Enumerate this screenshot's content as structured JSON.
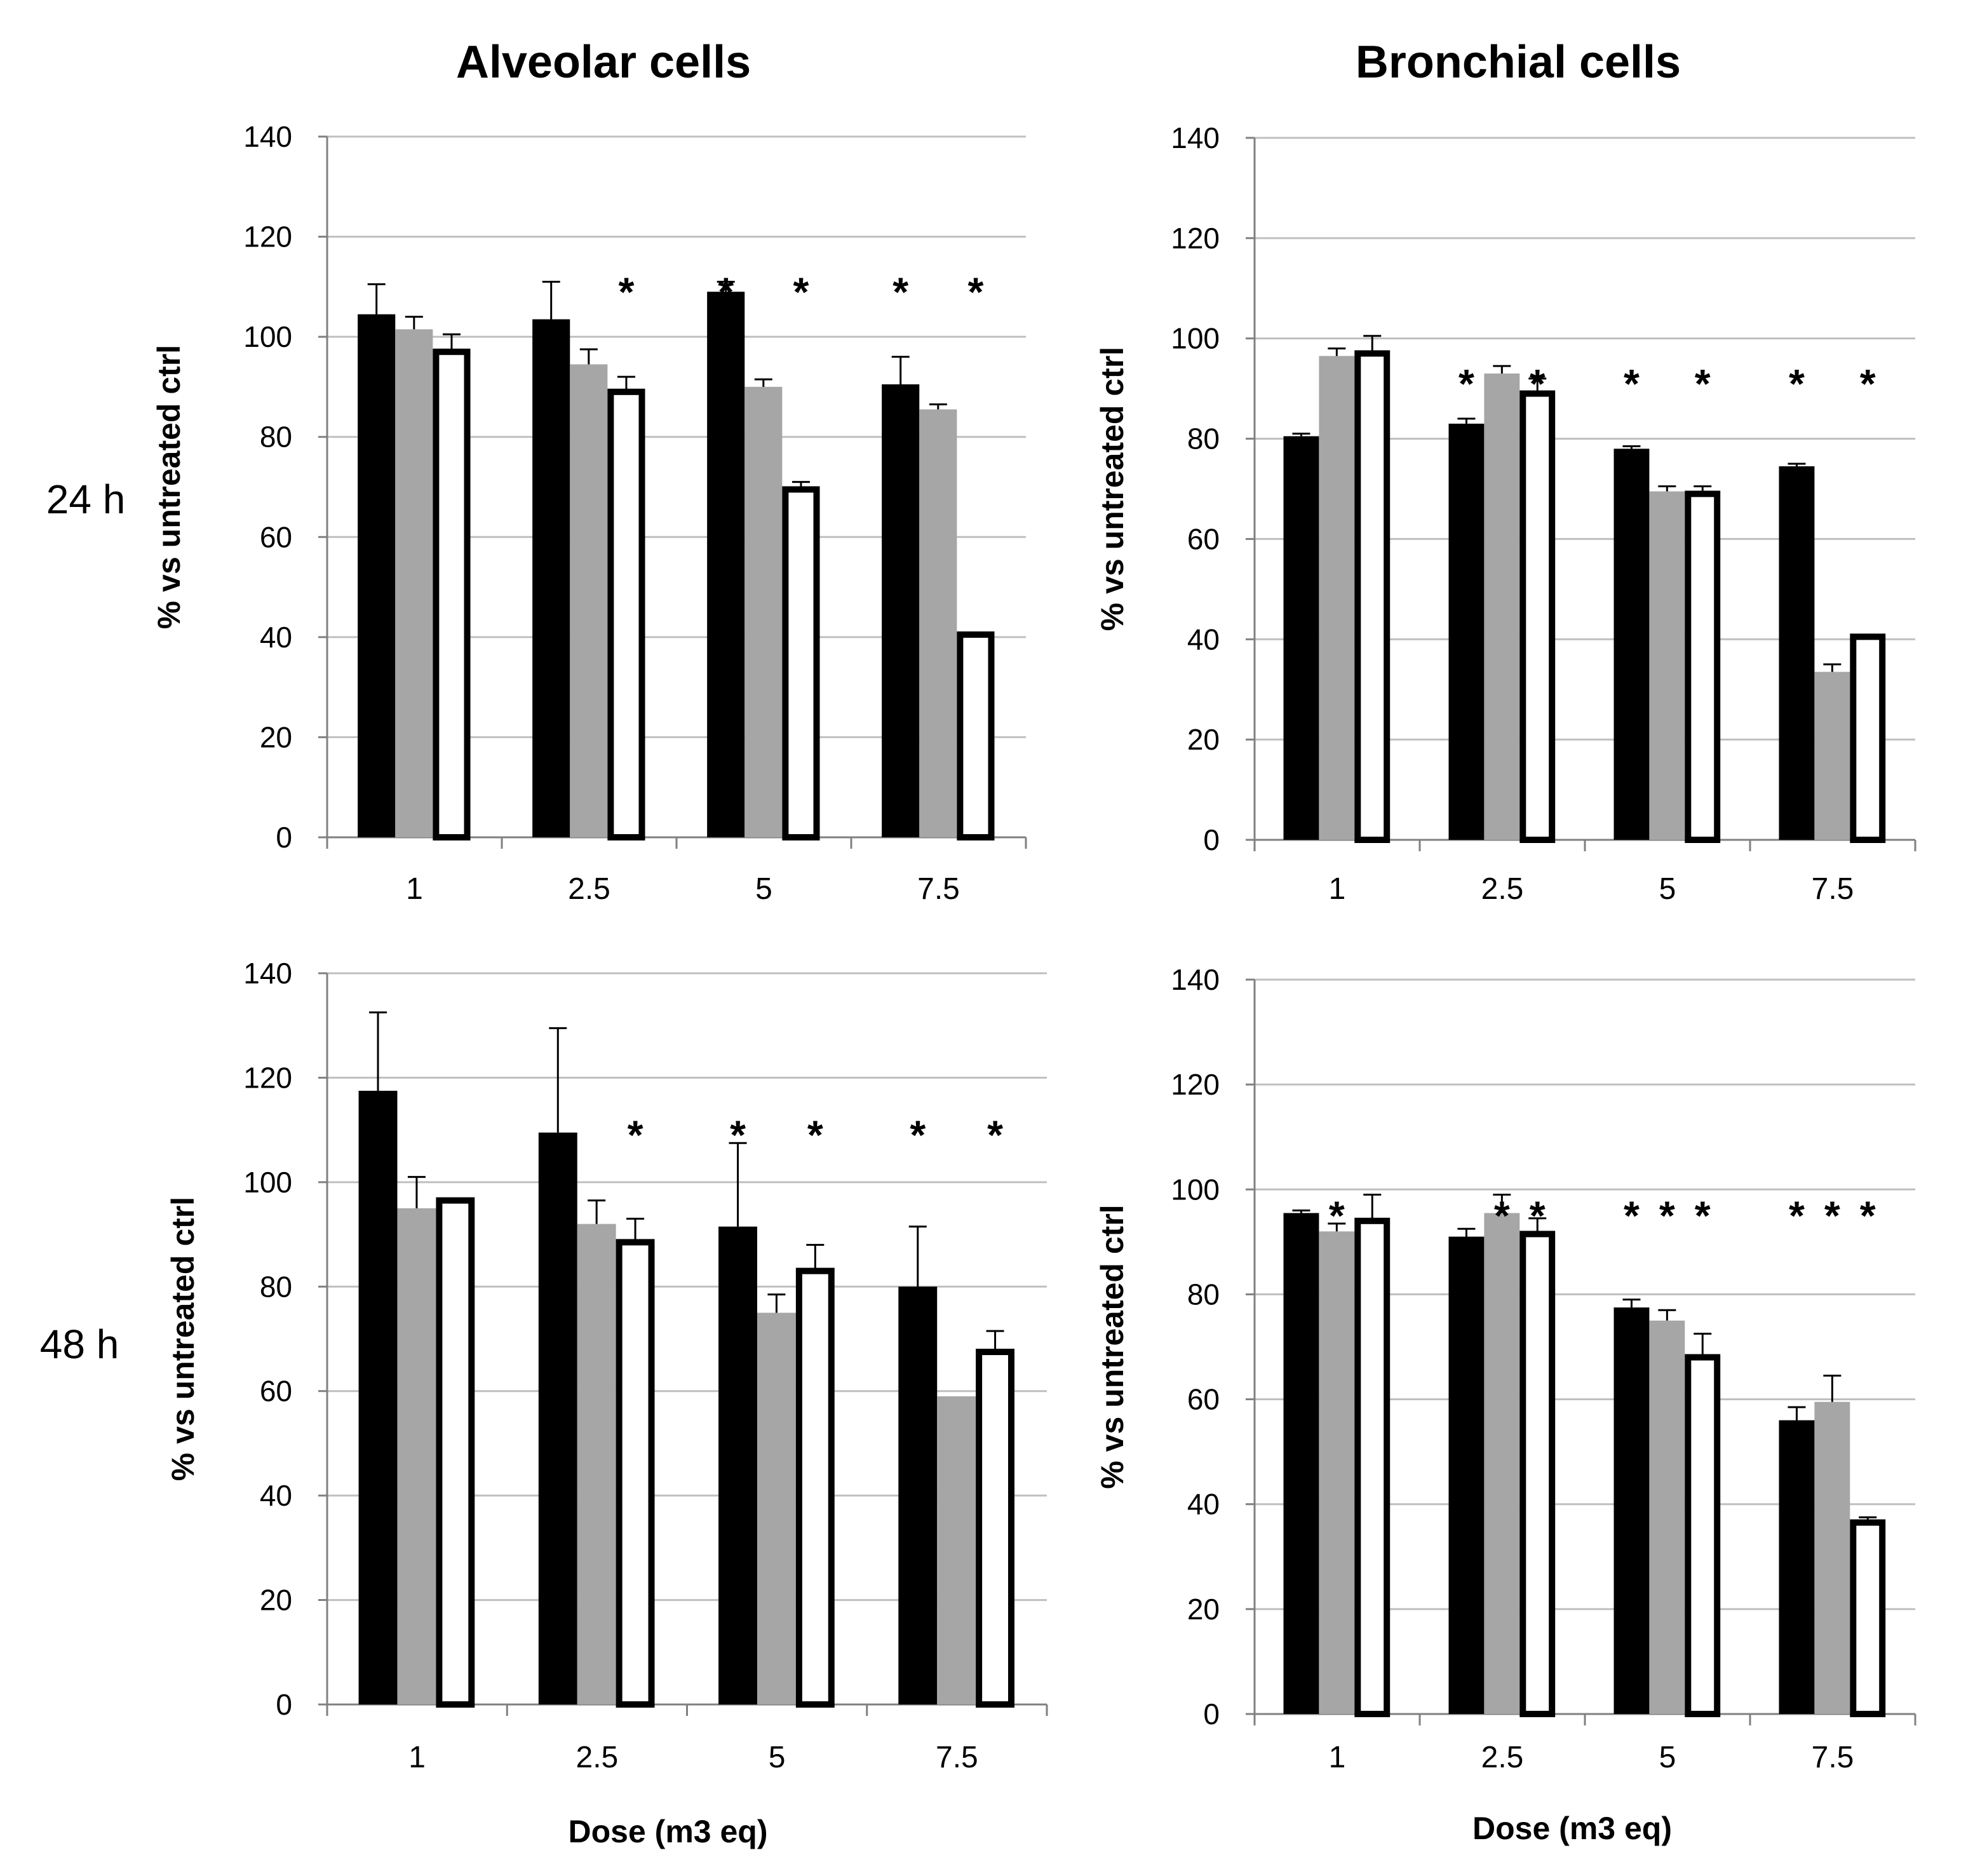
{
  "column_titles": [
    "Alveolar cells",
    "Bronchial cells"
  ],
  "row_labels": [
    "24 h",
    "48 h"
  ],
  "colors": {
    "series_black": "#000000",
    "series_gray": "#a6a6a6",
    "series_white": "#ffffff",
    "grid": "#bfbfbf"
  },
  "chart_data": [
    {
      "type": "bar",
      "panel": "alveolar-24h",
      "title": "Alveolar cells",
      "row": "24 h",
      "categories": [
        "1",
        "2.5",
        "5",
        "7.5"
      ],
      "xlabel": "",
      "ylabel": "% vs untreated ctrl",
      "ylim": [
        0,
        140
      ],
      "yticks": [
        0,
        20,
        40,
        60,
        80,
        100,
        120,
        140
      ],
      "grid": true,
      "series": [
        {
          "name": "black",
          "style": "black",
          "values": [
            104.5,
            103.5,
            109,
            90.5
          ],
          "errors": [
            6,
            7.5,
            2,
            5.5
          ]
        },
        {
          "name": "gray",
          "style": "gray",
          "values": [
            101.5,
            94.5,
            90,
            85.5
          ],
          "errors": [
            2.5,
            3,
            1.5,
            1
          ]
        },
        {
          "name": "white",
          "style": "white",
          "values": [
            97,
            89,
            69.5,
            40.5
          ],
          "errors": [
            3.5,
            3,
            1.5,
            0
          ]
        }
      ],
      "significance": [
        {
          "category": 1,
          "series": 2,
          "label": "*"
        },
        {
          "category": 2,
          "series": 0,
          "label": "*"
        },
        {
          "category": 2,
          "series": 2,
          "label": "*"
        },
        {
          "category": 3,
          "series": 0,
          "label": "*"
        },
        {
          "category": 3,
          "series": 2,
          "label": "*"
        }
      ]
    },
    {
      "type": "bar",
      "panel": "bronchial-24h",
      "title": "Bronchial cells",
      "row": "24 h",
      "categories": [
        "1",
        "2.5",
        "5",
        "7.5"
      ],
      "xlabel": "",
      "ylabel": "% vs untreated ctrl",
      "ylim": [
        0,
        140
      ],
      "yticks": [
        0,
        20,
        40,
        60,
        80,
        100,
        120,
        140
      ],
      "grid": true,
      "series": [
        {
          "name": "black",
          "style": "black",
          "values": [
            80.5,
            83,
            78,
            74.5
          ],
          "errors": [
            0.5,
            1,
            0.5,
            0.5
          ]
        },
        {
          "name": "gray",
          "style": "gray",
          "values": [
            96.5,
            93,
            69.5,
            33.5
          ],
          "errors": [
            1.5,
            1.5,
            1,
            1.5
          ]
        },
        {
          "name": "white",
          "style": "white",
          "values": [
            97,
            89,
            69,
            40.5
          ],
          "errors": [
            3.5,
            3,
            1.5,
            0
          ]
        }
      ],
      "significance": [
        {
          "category": 1,
          "series": 0,
          "label": "*"
        },
        {
          "category": 1,
          "series": 2,
          "label": "*"
        },
        {
          "category": 2,
          "series": 0,
          "label": "*"
        },
        {
          "category": 2,
          "series": 2,
          "label": "*"
        },
        {
          "category": 3,
          "series": 0,
          "label": "*"
        },
        {
          "category": 3,
          "series": 2,
          "label": "*"
        }
      ]
    },
    {
      "type": "bar",
      "panel": "alveolar-48h",
      "title": "Alveolar cells",
      "row": "48 h",
      "categories": [
        "1",
        "2.5",
        "5",
        "7.5"
      ],
      "xlabel": "Dose (m3 eq)",
      "ylabel": "% vs untreated ctrl",
      "ylim": [
        0,
        140
      ],
      "yticks": [
        0,
        20,
        40,
        60,
        80,
        100,
        120,
        140
      ],
      "grid": true,
      "series": [
        {
          "name": "black",
          "style": "black",
          "values": [
            117.5,
            109.5,
            91.5,
            80
          ],
          "errors": [
            15,
            20,
            16,
            11.5
          ]
        },
        {
          "name": "gray",
          "style": "gray",
          "values": [
            95,
            92,
            75,
            59
          ],
          "errors": [
            6,
            4.5,
            3.5,
            0.3
          ]
        },
        {
          "name": "white",
          "style": "white",
          "values": [
            96.5,
            88.5,
            83,
            67.5
          ],
          "errors": [
            0,
            4.5,
            5,
            4
          ]
        }
      ],
      "significance": [
        {
          "category": 1,
          "series": 2,
          "label": "*"
        },
        {
          "category": 2,
          "series": 0,
          "label": "*"
        },
        {
          "category": 2,
          "series": 2,
          "label": "*"
        },
        {
          "category": 3,
          "series": 0,
          "label": "*"
        },
        {
          "category": 3,
          "series": 2,
          "label": "*"
        }
      ]
    },
    {
      "type": "bar",
      "panel": "bronchial-48h",
      "title": "Bronchial cells",
      "row": "48 h",
      "categories": [
        "1",
        "2.5",
        "5",
        "7.5"
      ],
      "xlabel": "Dose (m3 eq)",
      "ylabel": "% vs untreated ctrl",
      "ylim": [
        0,
        140
      ],
      "yticks": [
        0,
        20,
        40,
        60,
        80,
        100,
        120,
        140
      ],
      "grid": true,
      "series": [
        {
          "name": "black",
          "style": "black",
          "values": [
            95.5,
            91,
            77.5,
            56
          ],
          "errors": [
            0.5,
            1.5,
            1.5,
            2.5
          ]
        },
        {
          "name": "gray",
          "style": "gray",
          "values": [
            92,
            95.5,
            75,
            59.5
          ],
          "errors": [
            1.5,
            3.5,
            2,
            5
          ]
        },
        {
          "name": "white",
          "style": "white",
          "values": [
            94,
            91.5,
            68,
            36.5
          ],
          "errors": [
            5,
            3,
            4.5,
            1
          ]
        }
      ],
      "significance": [
        {
          "category": 0,
          "series": 1,
          "label": "*"
        },
        {
          "category": 1,
          "series": 1,
          "label": "*"
        },
        {
          "category": 1,
          "series": 2,
          "label": "*"
        },
        {
          "category": 2,
          "series": 0,
          "label": "*"
        },
        {
          "category": 2,
          "series": 1,
          "label": "*"
        },
        {
          "category": 2,
          "series": 2,
          "label": "*"
        },
        {
          "category": 3,
          "series": 0,
          "label": "*"
        },
        {
          "category": 3,
          "series": 1,
          "label": "*"
        },
        {
          "category": 3,
          "series": 2,
          "label": "*"
        }
      ]
    }
  ]
}
